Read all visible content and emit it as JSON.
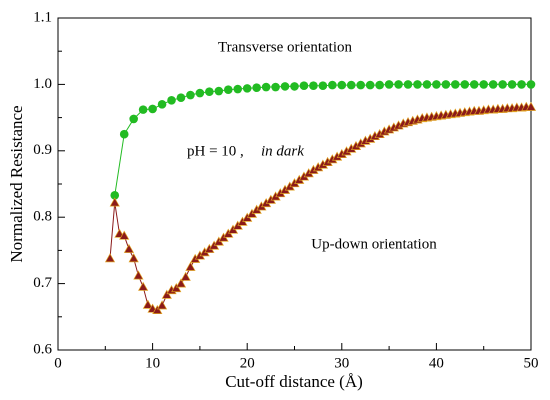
{
  "chart_data": {
    "type": "line",
    "xlabel": "Cut-off distance (Å)",
    "ylabel": "Normalized Resistance",
    "annotations": [
      "Transverse orientation",
      "pH = 10 ,",
      "in dark",
      "Up-down orientation"
    ],
    "xlim": [
      0,
      50
    ],
    "xticks": [
      0,
      10,
      20,
      30,
      40,
      50
    ],
    "ylim": [
      0.6,
      1.1
    ],
    "yticks": [
      0.6,
      0.7,
      0.8,
      0.9,
      {
        "value": 1,
        "label": "1.0"
      },
      1.1
    ],
    "series": [
      {
        "color": "#22bb22",
        "marker": "circle",
        "x": [
          6,
          7,
          8,
          9,
          10,
          11,
          12,
          13,
          14,
          15,
          16,
          17,
          18,
          19,
          20,
          21,
          22,
          23,
          24,
          25,
          26,
          27,
          28,
          29,
          30,
          31,
          32,
          33,
          34,
          35,
          36,
          37,
          38,
          39,
          40,
          41,
          42,
          43,
          44,
          45,
          46,
          47,
          48,
          49,
          50
        ],
        "values": [
          0.833,
          0.925,
          0.948,
          0.962,
          0.963,
          0.97,
          0.976,
          0.98,
          0.984,
          0.987,
          0.989,
          0.99,
          0.992,
          0.993,
          0.994,
          0.995,
          0.996,
          0.996,
          0.997,
          0.997,
          0.998,
          0.998,
          0.998,
          0.999,
          0.999,
          0.999,
          0.999,
          0.999,
          0.999,
          1,
          1,
          1,
          1,
          1,
          1,
          1,
          1,
          1,
          1,
          1,
          1,
          1,
          1,
          1,
          1
        ]
      },
      {
        "color": "#8b1a1a",
        "marker": "triangle",
        "x": [
          5.5,
          6,
          6.5,
          7,
          7.5,
          8,
          8.5,
          9,
          9.5,
          10,
          10.5,
          11,
          11.5,
          12,
          12.5,
          13,
          13.5,
          14,
          14.5,
          15,
          15.5,
          16,
          16.5,
          17,
          17.5,
          18,
          18.5,
          19,
          19.5,
          20,
          20.5,
          21,
          21.5,
          22,
          22.5,
          23,
          23.5,
          24,
          24.5,
          25,
          25.5,
          26,
          26.5,
          27,
          27.5,
          28,
          28.5,
          29,
          29.5,
          30,
          30.5,
          31,
          31.5,
          32,
          32.5,
          33,
          33.5,
          34,
          34.5,
          35,
          35.5,
          36,
          36.5,
          37,
          37.5,
          38,
          38.5,
          39,
          39.5,
          40,
          40.5,
          41,
          41.5,
          42,
          42.5,
          43,
          43.5,
          44,
          44.5,
          45,
          45.5,
          46,
          46.5,
          47,
          47.5,
          48,
          48.5,
          49,
          49.5,
          50
        ],
        "values": [
          0.738,
          0.822,
          0.775,
          0.772,
          0.752,
          0.738,
          0.712,
          0.695,
          0.668,
          0.662,
          0.66,
          0.667,
          0.683,
          0.69,
          0.693,
          0.7,
          0.71,
          0.725,
          0.737,
          0.742,
          0.747,
          0.752,
          0.757,
          0.763,
          0.769,
          0.775,
          0.781,
          0.787,
          0.793,
          0.799,
          0.805,
          0.811,
          0.816,
          0.821,
          0.826,
          0.831,
          0.836,
          0.841,
          0.846,
          0.851,
          0.856,
          0.861,
          0.866,
          0.871,
          0.875,
          0.879,
          0.883,
          0.887,
          0.891,
          0.895,
          0.899,
          0.903,
          0.907,
          0.911,
          0.915,
          0.918,
          0.922,
          0.925,
          0.929,
          0.932,
          0.935,
          0.938,
          0.941,
          0.943,
          0.945,
          0.947,
          0.949,
          0.95,
          0.951,
          0.952,
          0.953,
          0.954,
          0.955,
          0.956,
          0.957,
          0.958,
          0.959,
          0.96,
          0.96,
          0.961,
          0.962,
          0.962,
          0.963,
          0.963,
          0.964,
          0.964,
          0.965,
          0.965,
          0.966,
          0.966
        ]
      }
    ]
  }
}
